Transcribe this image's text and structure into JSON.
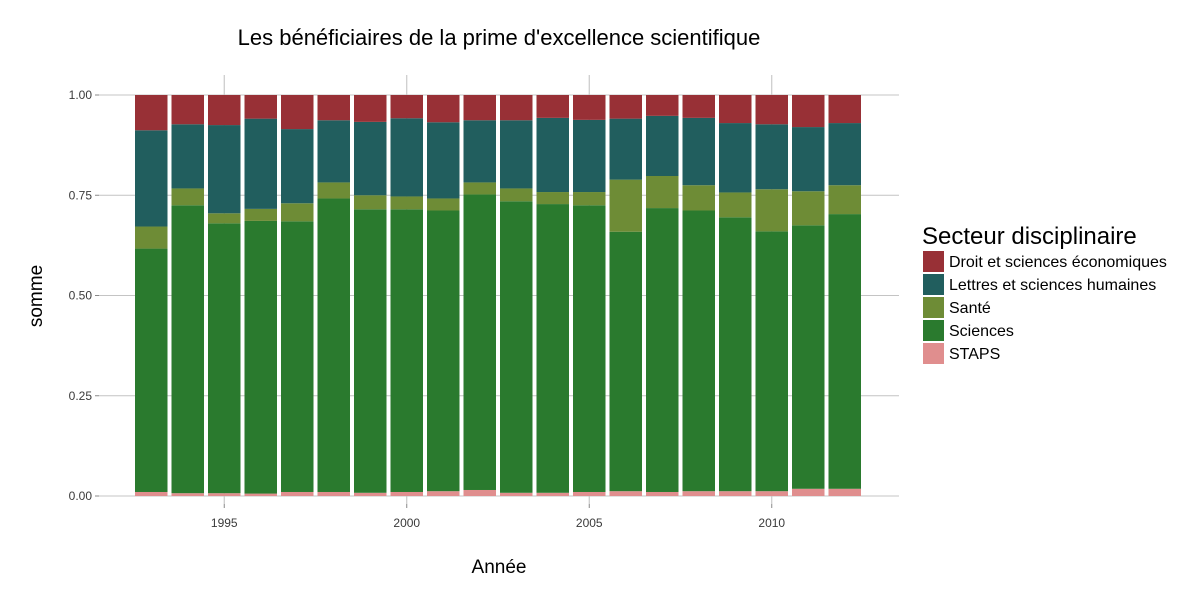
{
  "chart_data": {
    "type": "bar",
    "stacked": true,
    "title": "Les bénéficiaires de la prime d'excellence scientifique",
    "xlabel": "Année",
    "ylabel": "somme",
    "ylim": [
      0,
      1
    ],
    "yticks": [
      "0.00",
      "0.25",
      "0.50",
      "0.75",
      "1.00"
    ],
    "xticks": [
      "1995",
      "2000",
      "2005",
      "2010"
    ],
    "grid": true,
    "legend_position": "right",
    "legend_title": "Secteur disciplinaire",
    "categories": [
      "1993",
      "1994",
      "1995",
      "1996",
      "1997",
      "1998",
      "1999",
      "2000",
      "2001",
      "2002",
      "2003",
      "2004",
      "2005",
      "2006",
      "2007",
      "2008",
      "2009",
      "2010",
      "2011",
      "2012"
    ],
    "series": [
      {
        "name": "STAPS",
        "color": "#e08e8e",
        "values": [
          0.01,
          0.007,
          0.007,
          0.006,
          0.01,
          0.01,
          0.008,
          0.01,
          0.012,
          0.015,
          0.008,
          0.008,
          0.01,
          0.012,
          0.01,
          0.012,
          0.012,
          0.012,
          0.018,
          0.018
        ]
      },
      {
        "name": "Sciences",
        "color": "#2a7a2e",
        "values": [
          0.607,
          0.718,
          0.673,
          0.68,
          0.675,
          0.732,
          0.707,
          0.705,
          0.7,
          0.737,
          0.727,
          0.72,
          0.715,
          0.647,
          0.708,
          0.7,
          0.683,
          0.648,
          0.657,
          0.685
        ]
      },
      {
        "name": "Santé",
        "color": "#6e8c36",
        "values": [
          0.055,
          0.042,
          0.025,
          0.03,
          0.045,
          0.04,
          0.035,
          0.032,
          0.03,
          0.03,
          0.032,
          0.03,
          0.033,
          0.13,
          0.08,
          0.063,
          0.062,
          0.105,
          0.085,
          0.072
        ]
      },
      {
        "name": "Lettres et sciences humaines",
        "color": "#215e5e",
        "values": [
          0.24,
          0.16,
          0.22,
          0.225,
          0.185,
          0.155,
          0.183,
          0.195,
          0.19,
          0.155,
          0.17,
          0.185,
          0.18,
          0.152,
          0.15,
          0.168,
          0.173,
          0.162,
          0.16,
          0.155
        ]
      },
      {
        "name": "Droit et sciences économiques",
        "color": "#983036",
        "values": [
          0.088,
          0.073,
          0.075,
          0.059,
          0.085,
          0.063,
          0.067,
          0.058,
          0.068,
          0.063,
          0.063,
          0.057,
          0.062,
          0.059,
          0.052,
          0.057,
          0.07,
          0.073,
          0.08,
          0.07
        ]
      }
    ]
  }
}
